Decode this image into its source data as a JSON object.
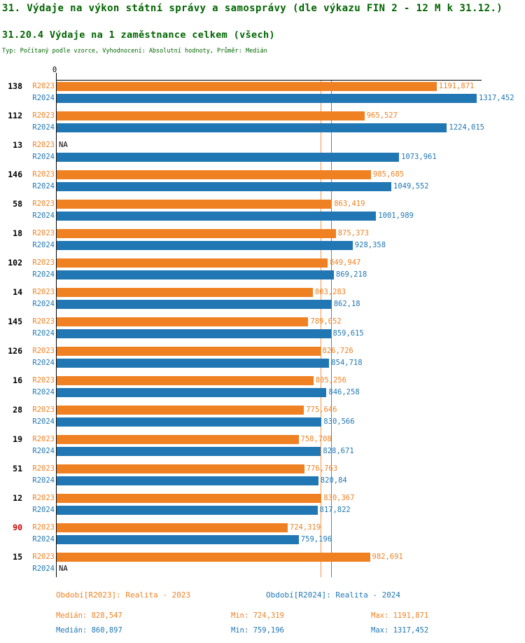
{
  "chart_data": {
    "type": "bar",
    "orientation": "horizontal",
    "title": "31. Výdaje na výkon státní správy a samosprávy (dle výkazu FIN 2 - 12 M k 31.12.)",
    "subtitle": "31.20.4 Výdaje na 1 zaměstnance celkem (všech)",
    "meta": "Typ: Počítaný podle vzorce, Vyhodnocení: Absolutní hodnoty, Průměr: Medián",
    "text_color": "#006400",
    "highlight_color": "#cc0000",
    "x_axis": {
      "origin_label": "0",
      "min": 0
    },
    "series": [
      {
        "id": "R2023",
        "color": "#f08122",
        "legend": "Období[R2023]: Realita - 2023",
        "median": 828.547,
        "stats": {
          "median": "Medián: 828,547",
          "min": "Min: 724,319",
          "max": "Max: 1191,871"
        }
      },
      {
        "id": "R2024",
        "color": "#2077b4",
        "legend": "Období[R2024]: Realita - 2024",
        "median": 860.897,
        "stats": {
          "median": "Medián: 860,897",
          "min": "Min: 759,196",
          "max": "Max: 1317,452"
        }
      }
    ],
    "groups": [
      {
        "label": "138",
        "values": [
          {
            "display": "1191,871",
            "value": 1191.871
          },
          {
            "display": "1317,452",
            "value": 1317.452
          }
        ]
      },
      {
        "label": "112",
        "values": [
          {
            "display": "965,527",
            "value": 965.527
          },
          {
            "display": "1224,015",
            "value": 1224.015
          }
        ]
      },
      {
        "label": "13",
        "values": [
          {
            "display": "NA",
            "value": null
          },
          {
            "display": "1073,961",
            "value": 1073.961
          }
        ]
      },
      {
        "label": "146",
        "values": [
          {
            "display": "985,685",
            "value": 985.685
          },
          {
            "display": "1049,552",
            "value": 1049.552
          }
        ]
      },
      {
        "label": "58",
        "values": [
          {
            "display": "863,419",
            "value": 863.419
          },
          {
            "display": "1001,989",
            "value": 1001.989
          }
        ]
      },
      {
        "label": "18",
        "values": [
          {
            "display": "875,373",
            "value": 875.373
          },
          {
            "display": "928,358",
            "value": 928.358
          }
        ]
      },
      {
        "label": "102",
        "values": [
          {
            "display": "849,947",
            "value": 849.947
          },
          {
            "display": "869,218",
            "value": 869.218
          }
        ]
      },
      {
        "label": "14",
        "values": [
          {
            "display": "803,283",
            "value": 803.283
          },
          {
            "display": "862,18",
            "value": 862.18
          }
        ]
      },
      {
        "label": "145",
        "values": [
          {
            "display": "789,052",
            "value": 789.052
          },
          {
            "display": "859,615",
            "value": 859.615
          }
        ]
      },
      {
        "label": "126",
        "values": [
          {
            "display": "826,726",
            "value": 826.726
          },
          {
            "display": "854,718",
            "value": 854.718
          }
        ]
      },
      {
        "label": "16",
        "values": [
          {
            "display": "805,256",
            "value": 805.256
          },
          {
            "display": "846,258",
            "value": 846.258
          }
        ]
      },
      {
        "label": "28",
        "values": [
          {
            "display": "775,646",
            "value": 775.646
          },
          {
            "display": "830,566",
            "value": 830.566
          }
        ]
      },
      {
        "label": "19",
        "values": [
          {
            "display": "758,708",
            "value": 758.708
          },
          {
            "display": "828,671",
            "value": 828.671
          }
        ]
      },
      {
        "label": "51",
        "values": [
          {
            "display": "776,763",
            "value": 776.763
          },
          {
            "display": "820,84",
            "value": 820.84
          }
        ]
      },
      {
        "label": "12",
        "values": [
          {
            "display": "830,367",
            "value": 830.367
          },
          {
            "display": "817,822",
            "value": 817.822
          }
        ]
      },
      {
        "label": "90",
        "highlight": true,
        "values": [
          {
            "display": "724,319",
            "value": 724.319
          },
          {
            "display": "759,196",
            "value": 759.196
          }
        ]
      },
      {
        "label": "15",
        "values": [
          {
            "display": "982,691",
            "value": 982.691
          },
          {
            "display": "NA",
            "value": null
          }
        ]
      }
    ]
  }
}
